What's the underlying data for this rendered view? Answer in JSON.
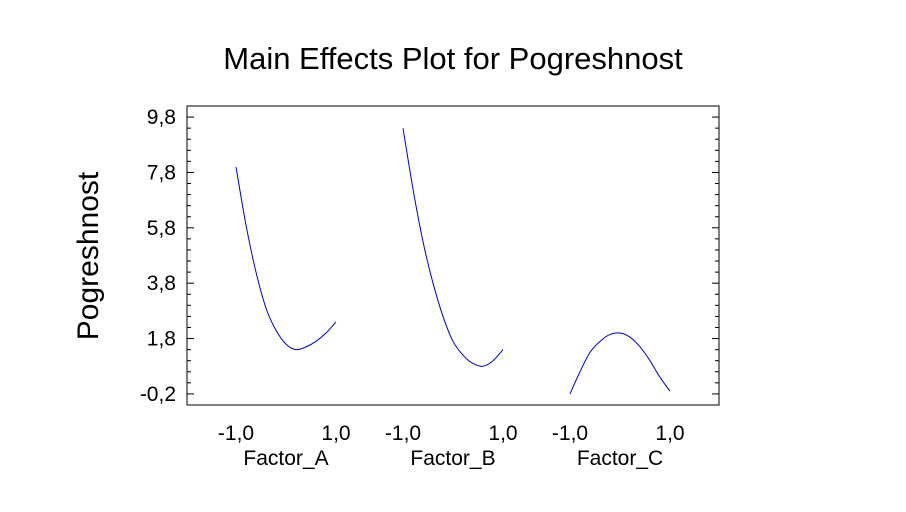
{
  "chart_data": {
    "type": "line",
    "title": "Main Effects Plot for Pogreshnost",
    "ylabel": "Pogreshnost",
    "ylim": [
      -0.6,
      10.2
    ],
    "yticks": [
      "-0,2",
      "1,8",
      "3,8",
      "5,8",
      "7,8",
      "9,8"
    ],
    "ytick_values": [
      -0.2,
      1.8,
      3.8,
      5.8,
      7.8,
      9.8
    ],
    "line_color": "#0000cc",
    "factors": [
      {
        "name": "Factor_A",
        "tick_labels": [
          "-1,0",
          "1,0"
        ],
        "x": [
          -1.0,
          -0.8,
          -0.6,
          -0.4,
          -0.2,
          0.0,
          0.2,
          0.4,
          0.6,
          0.8,
          1.0
        ],
        "y": [
          8.0,
          5.9,
          4.2,
          2.9,
          2.1,
          1.6,
          1.4,
          1.5,
          1.7,
          2.0,
          2.4
        ]
      },
      {
        "name": "Factor_B",
        "tick_labels": [
          "-1,0",
          "1,0"
        ],
        "x": [
          -1.0,
          -0.8,
          -0.6,
          -0.4,
          -0.2,
          0.0,
          0.2,
          0.4,
          0.6,
          0.8,
          1.0
        ],
        "y": [
          9.4,
          7.2,
          5.3,
          3.8,
          2.6,
          1.7,
          1.2,
          0.9,
          0.8,
          1.0,
          1.4
        ]
      },
      {
        "name": "Factor_C",
        "tick_labels": [
          "-1,0",
          "1,0"
        ],
        "x": [
          -1.0,
          -0.8,
          -0.6,
          -0.4,
          -0.2,
          0.0,
          0.2,
          0.4,
          0.6,
          0.8,
          1.0
        ],
        "y": [
          -0.2,
          0.6,
          1.3,
          1.7,
          1.95,
          2.0,
          1.85,
          1.5,
          1.0,
          0.4,
          -0.1
        ]
      }
    ]
  }
}
